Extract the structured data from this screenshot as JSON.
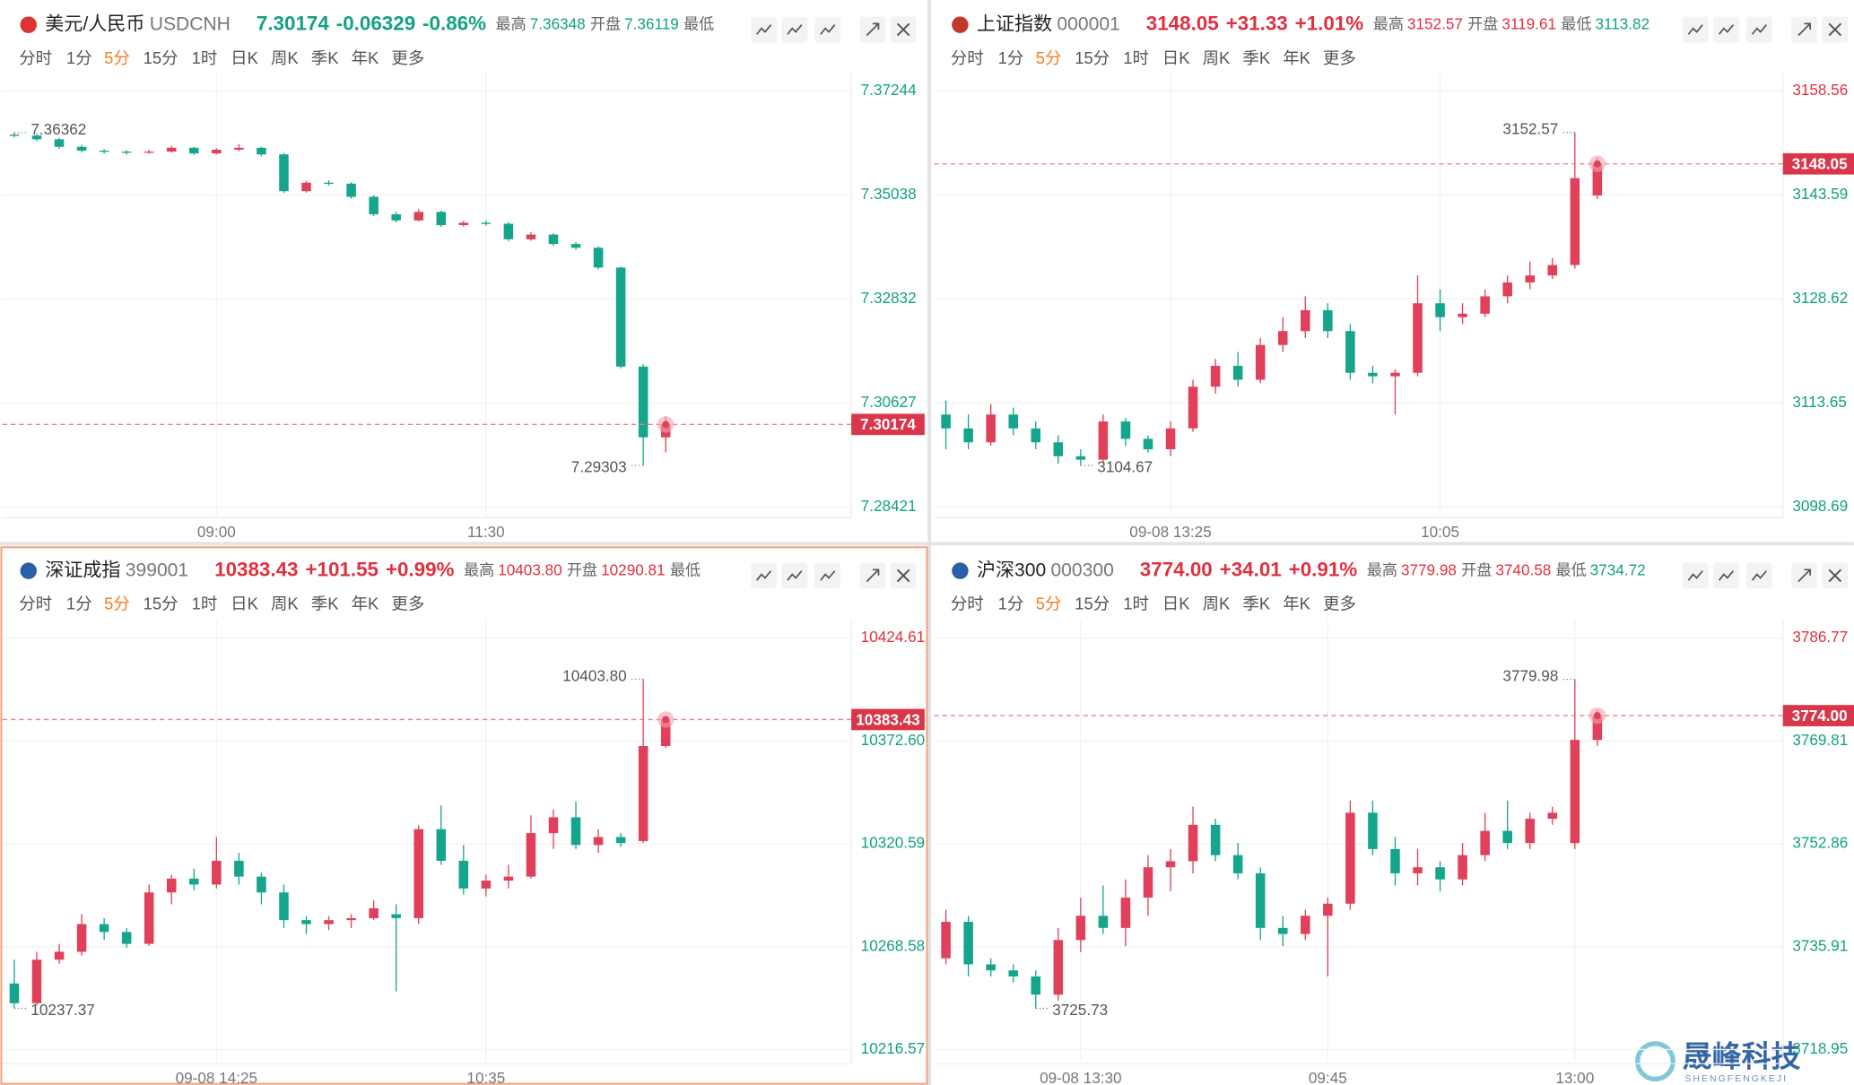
{
  "tabs": [
    "分时",
    "1分",
    "5分",
    "15分",
    "1时",
    "日K",
    "周K",
    "季K",
    "年K",
    "更多"
  ],
  "active_tab": 2,
  "watermark": {
    "title": "晟峰科技",
    "subtitle": "SHENGFENGKEJI"
  },
  "chart_data": [
    {
      "type": "candlestick",
      "name": "美元/人民币",
      "code": "USDCNH",
      "color": "#12a182",
      "change": "-0.06329",
      "pct": "-0.86%",
      "stats": [
        {
          "label": "最高",
          "value": "7.36348",
          "color": "#12a182"
        },
        {
          "label": "开盘",
          "value": "7.36119",
          "color": "#12a182"
        },
        {
          "label": "最低"
        }
      ],
      "up_color": "#e0405a",
      "down_color": "#15a58c",
      "ylim": [
        7.28246,
        7.3752
      ],
      "yticks": [
        7.37244,
        7.35038,
        7.32832,
        7.30627,
        7.28421
      ],
      "xticks": [
        {
          "value": 9,
          "label": "09:00"
        },
        {
          "value": 21,
          "label": "11:30"
        }
      ],
      "last": 7.30174,
      "high_label": "7.36362",
      "low_label": "7.29303",
      "ohlc": [
        [
          7.3632,
          7.36362,
          7.3626,
          7.363
        ],
        [
          7.363,
          7.3634,
          7.3618,
          7.3622
        ],
        [
          7.3622,
          7.3625,
          7.3602,
          7.3606
        ],
        [
          7.3606,
          7.361,
          7.3594,
          7.3598
        ],
        [
          7.3598,
          7.3601,
          7.3592,
          7.3596
        ],
        [
          7.3596,
          7.3599,
          7.359,
          7.3594
        ],
        [
          7.3594,
          7.36,
          7.3591,
          7.3596
        ],
        [
          7.3596,
          7.3608,
          7.3594,
          7.3604
        ],
        [
          7.3604,
          7.3606,
          7.3589,
          7.3592
        ],
        [
          7.3592,
          7.3603,
          7.359,
          7.36
        ],
        [
          7.36,
          7.3612,
          7.3597,
          7.3604
        ],
        [
          7.3604,
          7.3606,
          7.3586,
          7.359
        ],
        [
          7.359,
          7.3593,
          7.3508,
          7.3512
        ],
        [
          7.3512,
          7.3534,
          7.3509,
          7.353
        ],
        [
          7.353,
          7.3535,
          7.3524,
          7.3528
        ],
        [
          7.3528,
          7.3531,
          7.3496,
          7.35
        ],
        [
          7.35,
          7.3503,
          7.3459,
          7.3463
        ],
        [
          7.3463,
          7.3468,
          7.3446,
          7.345
        ],
        [
          7.345,
          7.3474,
          7.3448,
          7.3468
        ],
        [
          7.3468,
          7.3471,
          7.3436,
          7.344
        ],
        [
          7.344,
          7.3449,
          7.3437,
          7.3445
        ],
        [
          7.3445,
          7.345,
          7.3439,
          7.3443
        ],
        [
          7.3443,
          7.3446,
          7.3406,
          7.341
        ],
        [
          7.341,
          7.3425,
          7.3407,
          7.342
        ],
        [
          7.342,
          7.3423,
          7.3396,
          7.34
        ],
        [
          7.34,
          7.3404,
          7.3388,
          7.3392
        ],
        [
          7.3392,
          7.3395,
          7.3346,
          7.335
        ],
        [
          7.335,
          7.3352,
          7.3136,
          7.314
        ],
        [
          7.314,
          7.3145,
          7.29303,
          7.299
        ],
        [
          7.299,
          7.3034,
          7.2958,
          7.30174
        ]
      ]
    },
    {
      "type": "candlestick",
      "name": "上证指数",
      "code": "000001",
      "color": "#e0303f",
      "change": "+31.33",
      "pct": "+1.01%",
      "stats": [
        {
          "label": "最高",
          "value": "3152.57",
          "color": "#e0303f"
        },
        {
          "label": "开盘",
          "value": "3119.61",
          "color": "#e0303f"
        },
        {
          "label": "最低",
          "value": "3113.82",
          "color": "#12a182"
        }
      ],
      "up_color": "#e0405a",
      "down_color": "#15a58c",
      "ylim": [
        3097.5,
        3160.4
      ],
      "yticks": [
        3158.56,
        3143.59,
        3128.62,
        3113.65,
        3098.69
      ],
      "xticks": [
        {
          "value": 10,
          "label": "09-08 13:25"
        },
        {
          "value": 22,
          "label": "10:05"
        }
      ],
      "last": 3148.05,
      "high_label": "3152.57",
      "low_label": "3104.67",
      "ohlc": [
        [
          3112,
          3114,
          3107,
          3110
        ],
        [
          3110,
          3112,
          3107,
          3108
        ],
        [
          3108,
          3113.5,
          3107.5,
          3112
        ],
        [
          3112,
          3113,
          3109,
          3110
        ],
        [
          3110,
          3111,
          3107,
          3108
        ],
        [
          3108,
          3109,
          3104.9,
          3106
        ],
        [
          3106,
          3107,
          3104.67,
          3105.5
        ],
        [
          3105.5,
          3112,
          3105,
          3111
        ],
        [
          3111,
          3111.5,
          3107.5,
          3108.5
        ],
        [
          3108.5,
          3109,
          3106.5,
          3107
        ],
        [
          3107,
          3111,
          3106,
          3110
        ],
        [
          3110,
          3117,
          3109.5,
          3116
        ],
        [
          3116,
          3120,
          3115,
          3119
        ],
        [
          3119,
          3121,
          3116,
          3117
        ],
        [
          3117,
          3123,
          3116.5,
          3122
        ],
        [
          3122,
          3126,
          3121,
          3124
        ],
        [
          3124,
          3129,
          3123,
          3127
        ],
        [
          3127,
          3128,
          3123,
          3124
        ],
        [
          3124,
          3125,
          3117,
          3118
        ],
        [
          3118,
          3119,
          3116.5,
          3117.5
        ],
        [
          3117.5,
          3118.5,
          3112,
          3118
        ],
        [
          3118,
          3132,
          3117.5,
          3128
        ],
        [
          3128,
          3130,
          3124,
          3126
        ],
        [
          3126,
          3128,
          3125,
          3126.5
        ],
        [
          3126.5,
          3130,
          3126,
          3129
        ],
        [
          3129,
          3132,
          3128,
          3131
        ],
        [
          3131,
          3134,
          3130,
          3132
        ],
        [
          3132,
          3134.5,
          3131.5,
          3133.5
        ],
        [
          3133.5,
          3152.57,
          3133,
          3146
        ],
        [
          3143.5,
          3149,
          3143,
          3148.05
        ]
      ]
    },
    {
      "type": "candlestick",
      "name": "深证成指",
      "code": "399001",
      "color": "#e0303f",
      "change": "+101.55",
      "pct": "+0.99%",
      "stats": [
        {
          "label": "最高",
          "value": "10403.80",
          "color": "#e0303f"
        },
        {
          "label": "开盘",
          "value": "10290.81",
          "color": "#e0303f"
        },
        {
          "label": "最低"
        }
      ],
      "up_color": "#e0405a",
      "down_color": "#15a58c",
      "ylim": [
        10210.6,
        10431.7
      ],
      "yticks": [
        10424.61,
        {
          "value": 10372.6,
          "label": "10372.60"
        },
        10320.59,
        10268.58,
        10216.57
      ],
      "xticks": [
        {
          "value": 9,
          "label": "09-08 14:25"
        },
        {
          "value": 21,
          "label": "10:35"
        }
      ],
      "last": 10383.43,
      "high_label": "10403.80",
      "low_label": "10237.37",
      "ohlc": [
        [
          10250,
          10262,
          10237.37,
          10240
        ],
        [
          10240,
          10266,
          10239,
          10262
        ],
        [
          10262,
          10270,
          10260,
          10266
        ],
        [
          10266,
          10285,
          10264,
          10280
        ],
        [
          10280,
          10283,
          10272,
          10276
        ],
        [
          10276,
          10278,
          10268,
          10270
        ],
        [
          10270,
          10300,
          10269,
          10296
        ],
        [
          10296,
          10305,
          10290,
          10303
        ],
        [
          10303,
          10308,
          10297,
          10300
        ],
        [
          10300,
          10324,
          10298,
          10312
        ],
        [
          10312,
          10316,
          10300,
          10304
        ],
        [
          10304,
          10306,
          10290,
          10296
        ],
        [
          10296,
          10300,
          10278,
          10282
        ],
        [
          10282,
          10284,
          10275,
          10280
        ],
        [
          10280,
          10284,
          10277,
          10282
        ],
        [
          10282,
          10285,
          10278,
          10283
        ],
        [
          10283,
          10292,
          10282,
          10288
        ],
        [
          10285,
          10290,
          10246,
          10283
        ],
        [
          10283,
          10330,
          10280,
          10328
        ],
        [
          10328,
          10340,
          10310,
          10312
        ],
        [
          10312,
          10320,
          10295,
          10298
        ],
        [
          10298,
          10305,
          10294,
          10302
        ],
        [
          10302,
          10310,
          10298,
          10304
        ],
        [
          10304,
          10335,
          10303,
          10326
        ],
        [
          10326,
          10338,
          10318,
          10334
        ],
        [
          10334,
          10342,
          10318,
          10320
        ],
        [
          10320,
          10328,
          10316,
          10324
        ],
        [
          10324,
          10326,
          10319,
          10321
        ],
        [
          10322,
          10403.8,
          10321,
          10370
        ],
        [
          10370,
          10385,
          10369,
          10383.43
        ]
      ]
    },
    {
      "type": "candlestick",
      "name": "沪深300",
      "code": "000300",
      "color": "#e0303f",
      "change": "+34.01",
      "pct": "+0.91%",
      "stats": [
        {
          "label": "最高",
          "value": "3779.98",
          "color": "#e0303f"
        },
        {
          "label": "开盘",
          "value": "3740.58",
          "color": "#e0303f"
        },
        {
          "label": "最低",
          "value": "3734.72",
          "color": "#12a182"
        }
      ],
      "up_color": "#e0405a",
      "down_color": "#15a58c",
      "ylim": [
        3717.0,
        3789.1
      ],
      "yticks": [
        3786.77,
        3769.81,
        3752.86,
        3735.91,
        3718.95
      ],
      "xticks": [
        {
          "value": 6,
          "label": "09-08 13:30"
        },
        {
          "value": 17,
          "label": "09:45"
        },
        {
          "value": 28,
          "label": "13:00"
        }
      ],
      "last": {
        "value": 3774,
        "label": "3774.00"
      },
      "high_label": "3779.98",
      "low_label": "3725.73",
      "ohlc": [
        [
          3734,
          3742,
          3733,
          3740
        ],
        [
          3740,
          3741,
          3731,
          3733
        ],
        [
          3733,
          3734,
          3731,
          3732
        ],
        [
          3732,
          3733,
          3730,
          3731
        ],
        [
          3731,
          3732,
          3725.73,
          3728
        ],
        [
          3728,
          3739,
          3727,
          3737
        ],
        [
          3737,
          3744,
          3735,
          3741
        ],
        [
          3741,
          3746,
          3738,
          3739
        ],
        [
          3739,
          3747,
          3736,
          3744
        ],
        [
          3744,
          3751,
          3741,
          3749
        ],
        [
          3749,
          3752,
          3745,
          3750
        ],
        [
          3750,
          3759,
          3748,
          3756
        ],
        [
          3756,
          3757,
          3750,
          3751
        ],
        [
          3751,
          3753,
          3747,
          3748
        ],
        [
          3748,
          3749,
          3737,
          3739
        ],
        [
          3739,
          3741,
          3736,
          3738
        ],
        [
          3738,
          3742,
          3737,
          3741
        ],
        [
          3741,
          3744,
          3731,
          3743
        ],
        [
          3743,
          3760,
          3742,
          3758
        ],
        [
          3758,
          3760,
          3751,
          3752
        ],
        [
          3752,
          3754,
          3746,
          3748
        ],
        [
          3748,
          3752,
          3746,
          3749
        ],
        [
          3749,
          3750,
          3745,
          3747
        ],
        [
          3747,
          3753,
          3746,
          3751
        ],
        [
          3751,
          3758,
          3750,
          3755
        ],
        [
          3755,
          3760,
          3752,
          3753
        ],
        [
          3753,
          3758,
          3752,
          3757
        ],
        [
          3757,
          3759,
          3756,
          3758
        ],
        [
          3753,
          3779.98,
          3752,
          3770
        ],
        [
          3770,
          3775,
          3769,
          3774
        ]
      ]
    }
  ]
}
